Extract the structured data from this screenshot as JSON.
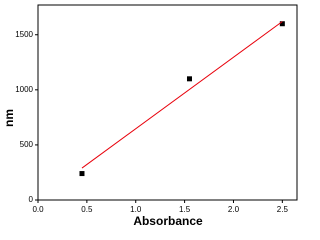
{
  "chart_data": {
    "type": "scatter",
    "x_label": "Absorbance",
    "y_label": "nm",
    "xlim": [
      0,
      2.65
    ],
    "ylim": [
      0,
      1770
    ],
    "xticks": [
      {
        "value": 0,
        "label": "0.0"
      },
      0.5,
      {
        "value": 1,
        "label": "1.0"
      },
      1.5,
      {
        "value": 2,
        "label": "2.0"
      },
      2.5
    ],
    "yticks": [
      0,
      500,
      1000,
      1500
    ],
    "series": [
      {
        "color": "#000000",
        "mode": "markers",
        "x": [
          0.45,
          1.55,
          2.5
        ],
        "values": [
          240,
          1100,
          1600
        ]
      },
      {
        "color": "#e8000b",
        "mode": "line",
        "x": [
          0.45,
          2.5
        ],
        "values": [
          290,
          1620
        ]
      }
    ]
  }
}
